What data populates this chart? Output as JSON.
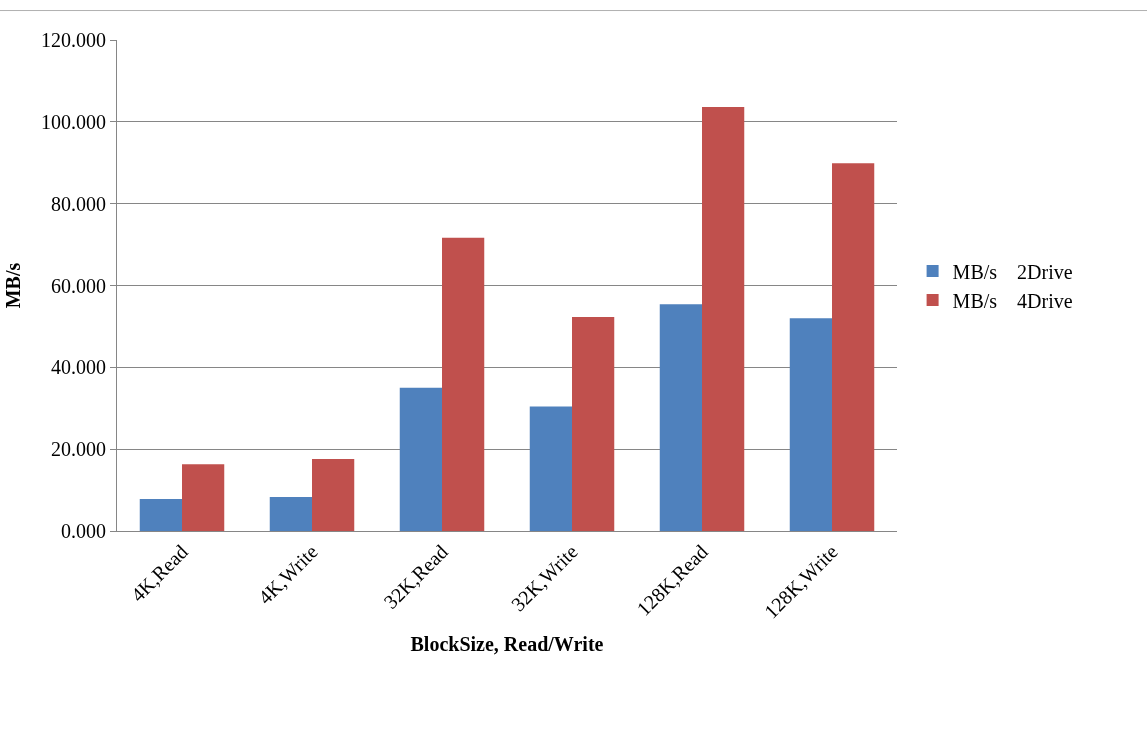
{
  "chart_data": {
    "type": "bar",
    "xlabel": "BlockSize, Read/Write",
    "ylabel": "MB/s",
    "categories": [
      "4K,Read",
      "4K,Write",
      "32K,Read",
      "32K,Write",
      "128K,Read",
      "128K,Write"
    ],
    "series": [
      {
        "name": "MB/s　2Drive",
        "color": "#4f81bd",
        "values": [
          7.8,
          8.3,
          35.0,
          30.4,
          55.4,
          52.0
        ]
      },
      {
        "name": "MB/s　4Drive",
        "color": "#c0504d",
        "values": [
          16.3,
          17.6,
          71.7,
          52.3,
          103.6,
          89.9
        ]
      }
    ],
    "ylim": [
      0,
      120
    ],
    "yticks": [
      {
        "value": 0,
        "label": "0.000"
      },
      {
        "value": 20,
        "label": "20.000"
      },
      {
        "value": 40,
        "label": "40.000"
      },
      {
        "value": 60,
        "label": "60.000"
      },
      {
        "value": 80,
        "label": "80.000"
      },
      {
        "value": 100,
        "label": "100.000"
      },
      {
        "value": 120,
        "label": "120.000"
      }
    ],
    "grid": "y",
    "legend": "right"
  }
}
